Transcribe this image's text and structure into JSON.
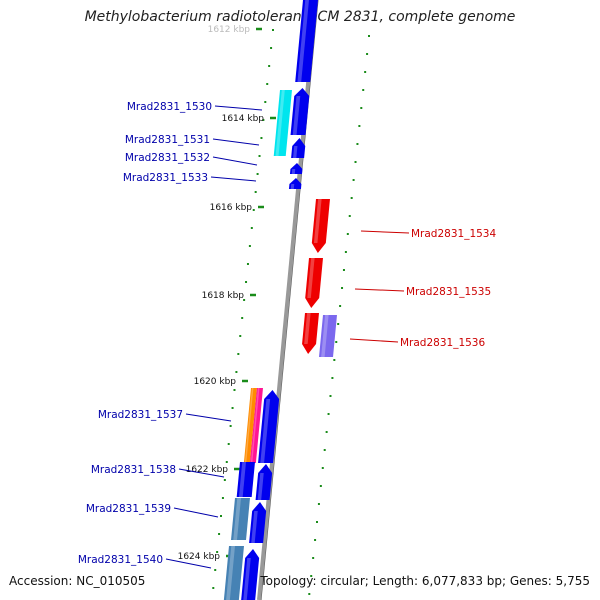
{
  "title": "Methylobacterium radiotolerans JCM 2831, complete genome",
  "footer": {
    "accession": "Accession: NC_010505",
    "stats": "Topology: circular; Length: 6,077,833 bp; Genes: 5,755"
  },
  "scale_labels": [
    "1612 kbp",
    "1614 kbp",
    "1616 kbp",
    "1618 kbp",
    "1620 kbp",
    "1622 kbp",
    "1624 kbp"
  ],
  "gene_labels_left": [
    "Mrad2831_1530",
    "Mrad2831_1531",
    "Mrad2831_1532",
    "Mrad2831_1533",
    "Mrad2831_1537",
    "Mrad2831_1538",
    "Mrad2831_1539",
    "Mrad2831_1540"
  ],
  "gene_labels_right": [
    "Mrad2831_1534",
    "Mrad2831_1535",
    "Mrad2831_1536"
  ],
  "colors": {
    "forward_gene": "#0000ee",
    "reverse_gene": "#ee0000",
    "left_label": "#0000aa",
    "right_label": "#cc0000",
    "cyan_gene": "#00e5ee",
    "steel_gene": "#4682b4",
    "orange_gene": "#ff8c00",
    "pink_gene": "#ff1493",
    "purple_gene": "#7b68ee",
    "scale_tick": "#1a8c1a",
    "backbone": "#999999"
  }
}
